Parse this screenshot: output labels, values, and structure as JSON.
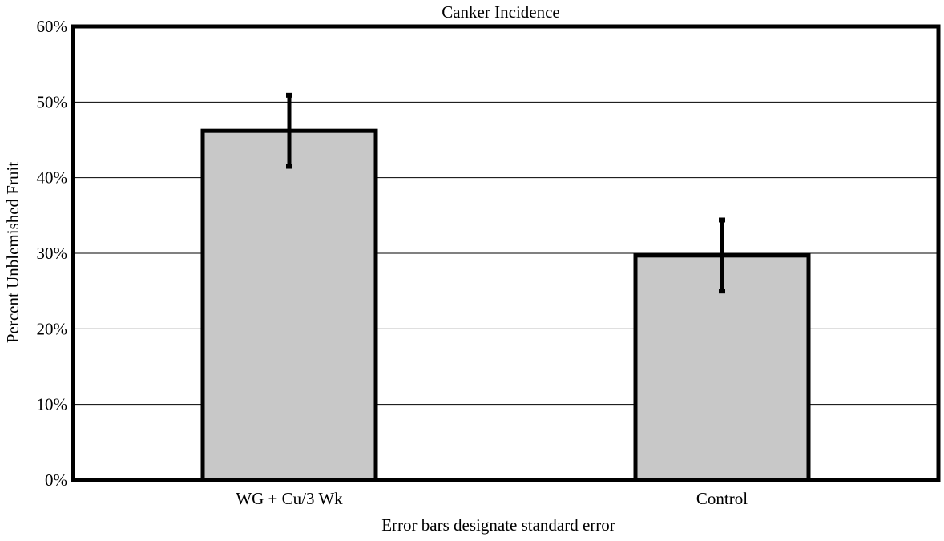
{
  "chart_data": {
    "type": "bar",
    "title": "Canker Incidence",
    "ylabel": "Percent Unblemished Fruit",
    "xlabel": "Error bars designate standard error",
    "categories": [
      "WG + Cu/3 Wk",
      "Control"
    ],
    "values": [
      46.2,
      29.7
    ],
    "error": [
      4.7,
      4.7
    ],
    "ylim": [
      0,
      60
    ],
    "yticks": [
      0,
      10,
      20,
      30,
      40,
      50,
      60
    ],
    "ytick_labels": [
      "0%",
      "10%",
      "20%",
      "30%",
      "40%",
      "50%",
      "60%"
    ],
    "grid": true,
    "legend": "none"
  },
  "colors": {
    "bar_fill": "#c8c8c8",
    "bar_stroke": "#000000",
    "gridline": "#000000",
    "error_bar": "#000000"
  }
}
